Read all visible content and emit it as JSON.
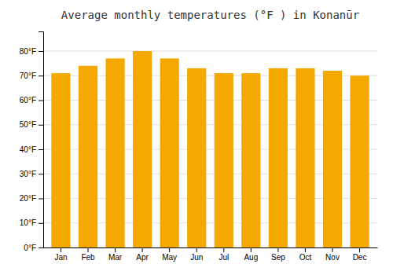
{
  "chart_data": {
    "type": "bar",
    "title": "Average monthly temperatures (°F ) in Konanūr",
    "categories": [
      "Jan",
      "Feb",
      "Mar",
      "Apr",
      "May",
      "Jun",
      "Jul",
      "Aug",
      "Sep",
      "Oct",
      "Nov",
      "Dec"
    ],
    "values": [
      71,
      74,
      77,
      80,
      77,
      73,
      71,
      71,
      73,
      73,
      72,
      70
    ],
    "color": "#F5A800",
    "ylim": [
      0,
      88
    ],
    "yticks": [
      {
        "value": 0,
        "label": "0°F"
      },
      {
        "value": 10,
        "label": "10°F"
      },
      {
        "value": 20,
        "label": "20°F"
      },
      {
        "value": 30,
        "label": "30°F"
      },
      {
        "value": 40,
        "label": "40°F"
      },
      {
        "value": 50,
        "label": "50°F"
      },
      {
        "value": 60,
        "label": "60°F"
      },
      {
        "value": 70,
        "label": "70°F"
      },
      {
        "value": 80,
        "label": "80°F"
      }
    ],
    "grid": true
  }
}
